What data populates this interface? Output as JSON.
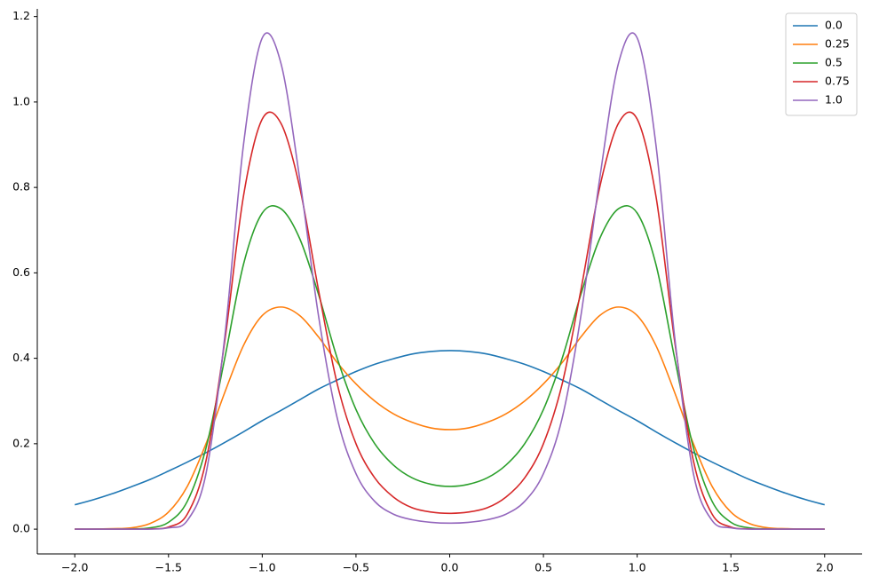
{
  "chart_data": {
    "type": "line",
    "x": [
      -2.0,
      -1.9,
      -1.8,
      -1.7,
      -1.6,
      -1.5,
      -1.4,
      -1.3,
      -1.2,
      -1.1,
      -1.0,
      -0.9,
      -0.8,
      -0.7,
      -0.6,
      -0.5,
      -0.4,
      -0.3,
      -0.2,
      -0.1,
      0.0,
      0.1,
      0.2,
      0.3,
      0.4,
      0.5,
      0.6,
      0.7,
      0.8,
      0.9,
      1.0,
      1.1,
      1.2,
      1.3,
      1.4,
      1.5,
      1.6,
      1.7,
      1.8,
      1.9,
      2.0
    ],
    "series": [
      {
        "name": "0.0",
        "color": "#1f77b4",
        "values": [
          0.057,
          0.069,
          0.083,
          0.099,
          0.116,
          0.136,
          0.157,
          0.179,
          0.203,
          0.228,
          0.254,
          0.278,
          0.303,
          0.328,
          0.349,
          0.369,
          0.386,
          0.399,
          0.41,
          0.416,
          0.418,
          0.416,
          0.41,
          0.399,
          0.386,
          0.369,
          0.349,
          0.328,
          0.303,
          0.278,
          0.254,
          0.228,
          0.203,
          0.179,
          0.157,
          0.136,
          0.116,
          0.099,
          0.083,
          0.069,
          0.057
        ]
      },
      {
        "name": "0.25",
        "color": "#ff7f0e",
        "values": [
          0,
          0,
          0.001,
          0.003,
          0.013,
          0.04,
          0.1,
          0.2,
          0.32,
          0.43,
          0.5,
          0.52,
          0.5,
          0.45,
          0.39,
          0.34,
          0.3,
          0.27,
          0.25,
          0.237,
          0.233,
          0.237,
          0.25,
          0.27,
          0.3,
          0.34,
          0.39,
          0.45,
          0.5,
          0.52,
          0.5,
          0.43,
          0.32,
          0.2,
          0.1,
          0.04,
          0.013,
          0.003,
          0.001,
          0,
          0
        ]
      },
      {
        "name": "0.5",
        "color": "#2ca02c",
        "values": [
          0,
          0,
          0,
          0.0005,
          0.003,
          0.016,
          0.065,
          0.19,
          0.4,
          0.62,
          0.74,
          0.75,
          0.68,
          0.55,
          0.4,
          0.28,
          0.2,
          0.15,
          0.12,
          0.105,
          0.1,
          0.105,
          0.12,
          0.15,
          0.2,
          0.28,
          0.4,
          0.55,
          0.68,
          0.75,
          0.74,
          0.62,
          0.4,
          0.19,
          0.065,
          0.016,
          0.003,
          0.0005,
          0,
          0,
          0
        ]
      },
      {
        "name": "0.75",
        "color": "#d62728",
        "values": [
          0,
          0,
          0,
          0,
          0.0005,
          0.005,
          0.035,
          0.16,
          0.44,
          0.78,
          0.96,
          0.95,
          0.8,
          0.56,
          0.34,
          0.2,
          0.12,
          0.075,
          0.05,
          0.04,
          0.037,
          0.04,
          0.05,
          0.075,
          0.12,
          0.2,
          0.34,
          0.56,
          0.8,
          0.95,
          0.96,
          0.78,
          0.44,
          0.16,
          0.035,
          0.005,
          0.0005,
          0,
          0,
          0,
          0
        ]
      },
      {
        "name": "1.0",
        "color": "#9467bd",
        "values": [
          0,
          0,
          0,
          0,
          0,
          0.003,
          0.02,
          0.13,
          0.45,
          0.9,
          1.15,
          1.09,
          0.82,
          0.5,
          0.26,
          0.13,
          0.065,
          0.035,
          0.022,
          0.016,
          0.014,
          0.016,
          0.022,
          0.035,
          0.065,
          0.13,
          0.26,
          0.5,
          0.82,
          1.09,
          1.15,
          0.9,
          0.45,
          0.13,
          0.02,
          0.003,
          0,
          0,
          0,
          0,
          0
        ]
      }
    ],
    "xlim": [
      -2.2,
      2.2
    ],
    "ylim": [
      -0.058,
      1.218
    ],
    "xticks": [
      {
        "value": -2.0,
        "label": "−2.0"
      },
      {
        "value": -1.5,
        "label": "−1.5"
      },
      {
        "value": -1.0,
        "label": "−1.0"
      },
      {
        "value": -0.5,
        "label": "−0.5"
      },
      {
        "value": 0,
        "label": "0.0"
      },
      0.5,
      {
        "value": 1,
        "label": "1.0"
      },
      1.5,
      {
        "value": 2,
        "label": "2.0"
      }
    ],
    "yticks": [
      {
        "value": 0,
        "label": "0.0"
      },
      0.2,
      0.4,
      0.6,
      0.8,
      {
        "value": 1,
        "label": "1.0"
      },
      1.2
    ],
    "legend": "upper right"
  }
}
